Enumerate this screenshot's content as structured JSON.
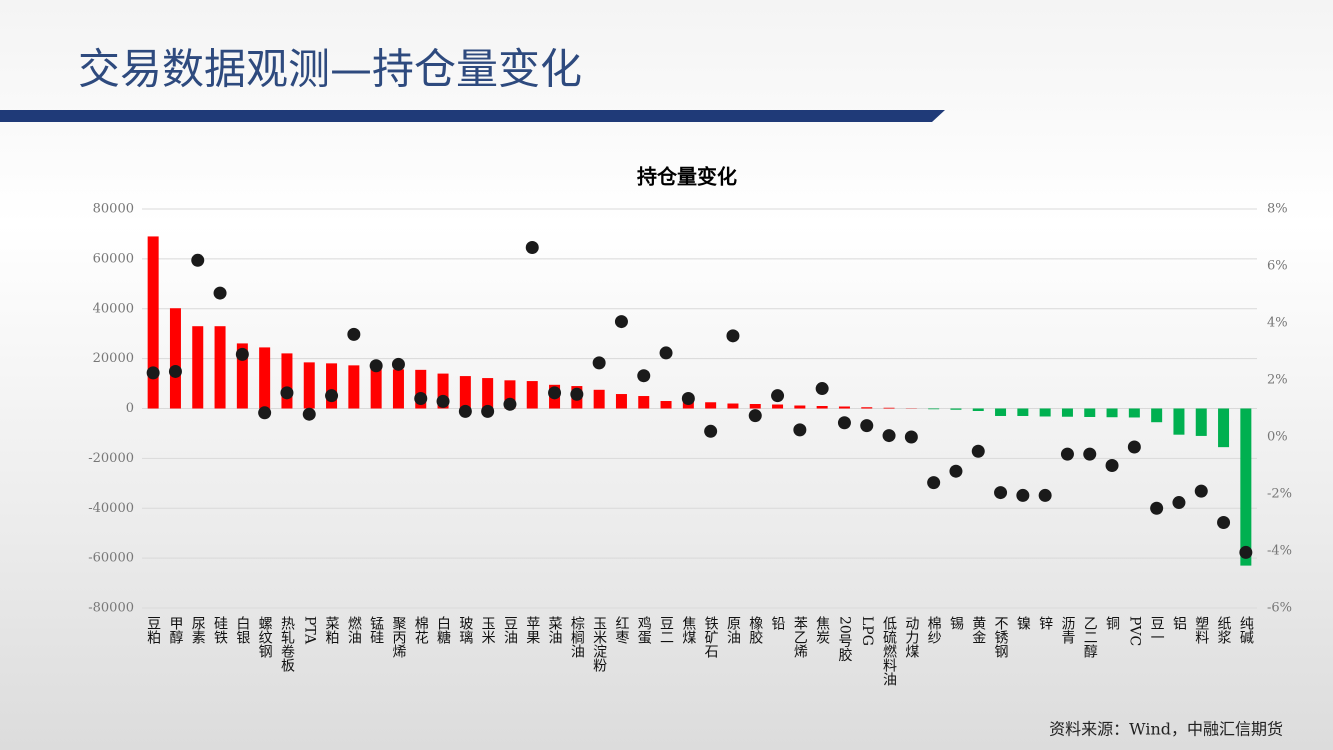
{
  "header": {
    "title": "交易数据观测—持仓量变化"
  },
  "footer": {
    "source": "资料来源：Wind，中融汇信期货"
  },
  "chart_data": {
    "type": "bar",
    "title": "持仓量变化",
    "categories": [
      "豆粕",
      "甲醇",
      "尿素",
      "硅铁",
      "白银",
      "螺纹钢",
      "热轧卷板",
      "PTA",
      "菜粕",
      "燃油",
      "锰硅",
      "聚丙烯",
      "棉花",
      "白糖",
      "玻璃",
      "玉米",
      "豆油",
      "苹果",
      "菜油",
      "棕榈油",
      "玉米淀粉",
      "红枣",
      "鸡蛋",
      "豆二",
      "焦煤",
      "铁矿石",
      "原油",
      "橡胶",
      "铅",
      "苯乙烯",
      "焦炭",
      "20号胶",
      "LPG",
      "低硫燃料油",
      "动力煤",
      "棉纱",
      "锡",
      "黄金",
      "不锈钢",
      "镍",
      "锌",
      "沥青",
      "乙二醇",
      "铜",
      "PVC",
      "豆一",
      "铝",
      "塑料",
      "纸浆",
      "纯碱"
    ],
    "series": [
      {
        "color": "#ff0000",
        "negative_color": "#00b050",
        "values": [
          69000,
          40200,
          33000,
          33000,
          26100,
          24500,
          22100,
          18500,
          18100,
          17300,
          16900,
          15700,
          15500,
          14000,
          13000,
          12200,
          11300,
          11000,
          9500,
          9000,
          7500,
          5800,
          5000,
          3000,
          2800,
          2500,
          2000,
          1800,
          1600,
          1200,
          1000,
          800,
          500,
          300,
          100,
          -300,
          -500,
          -1000,
          -3000,
          -3000,
          -3200,
          -3300,
          -3400,
          -3500,
          -3600,
          -5500,
          -10500,
          -11000,
          -15500,
          -63000
        ]
      },
      {
        "type": "scatter",
        "axis": "y2",
        "color": "#1a1a1a",
        "values": [
          2.25,
          2.3,
          6.2,
          5.05,
          2.9,
          0.85,
          1.55,
          0.8,
          1.45,
          3.6,
          2.5,
          2.55,
          1.35,
          1.25,
          0.9,
          0.9,
          1.15,
          6.65,
          1.55,
          1.5,
          2.6,
          4.05,
          2.15,
          2.95,
          1.35,
          0.2,
          3.55,
          0.75,
          1.45,
          0.25,
          1.7,
          0.5,
          0.4,
          0.05,
          0,
          -1.6,
          -1.2,
          -0.5,
          -1.95,
          -2.05,
          -2.05,
          -0.6,
          -0.6,
          -1.0,
          -0.35,
          -2.5,
          -2.3,
          -1.9,
          -3.0,
          -4.05
        ]
      }
    ],
    "ylim": [
      -80000,
      80000
    ],
    "yticks": [
      -80000,
      -60000,
      -40000,
      -20000,
      0,
      20000,
      40000,
      60000,
      80000
    ],
    "y2lim": [
      -6,
      8
    ],
    "y2ticks": [
      {
        "value": -6,
        "label": "-6%"
      },
      {
        "value": -4,
        "label": "-4%"
      },
      {
        "value": -2,
        "label": "-2%"
      },
      {
        "value": 0,
        "label": "0%"
      },
      {
        "value": 2,
        "label": "2%"
      },
      {
        "value": 4,
        "label": "4%"
      },
      {
        "value": 6,
        "label": "6%"
      },
      {
        "value": 8,
        "label": "8%"
      }
    ],
    "grid": true
  }
}
